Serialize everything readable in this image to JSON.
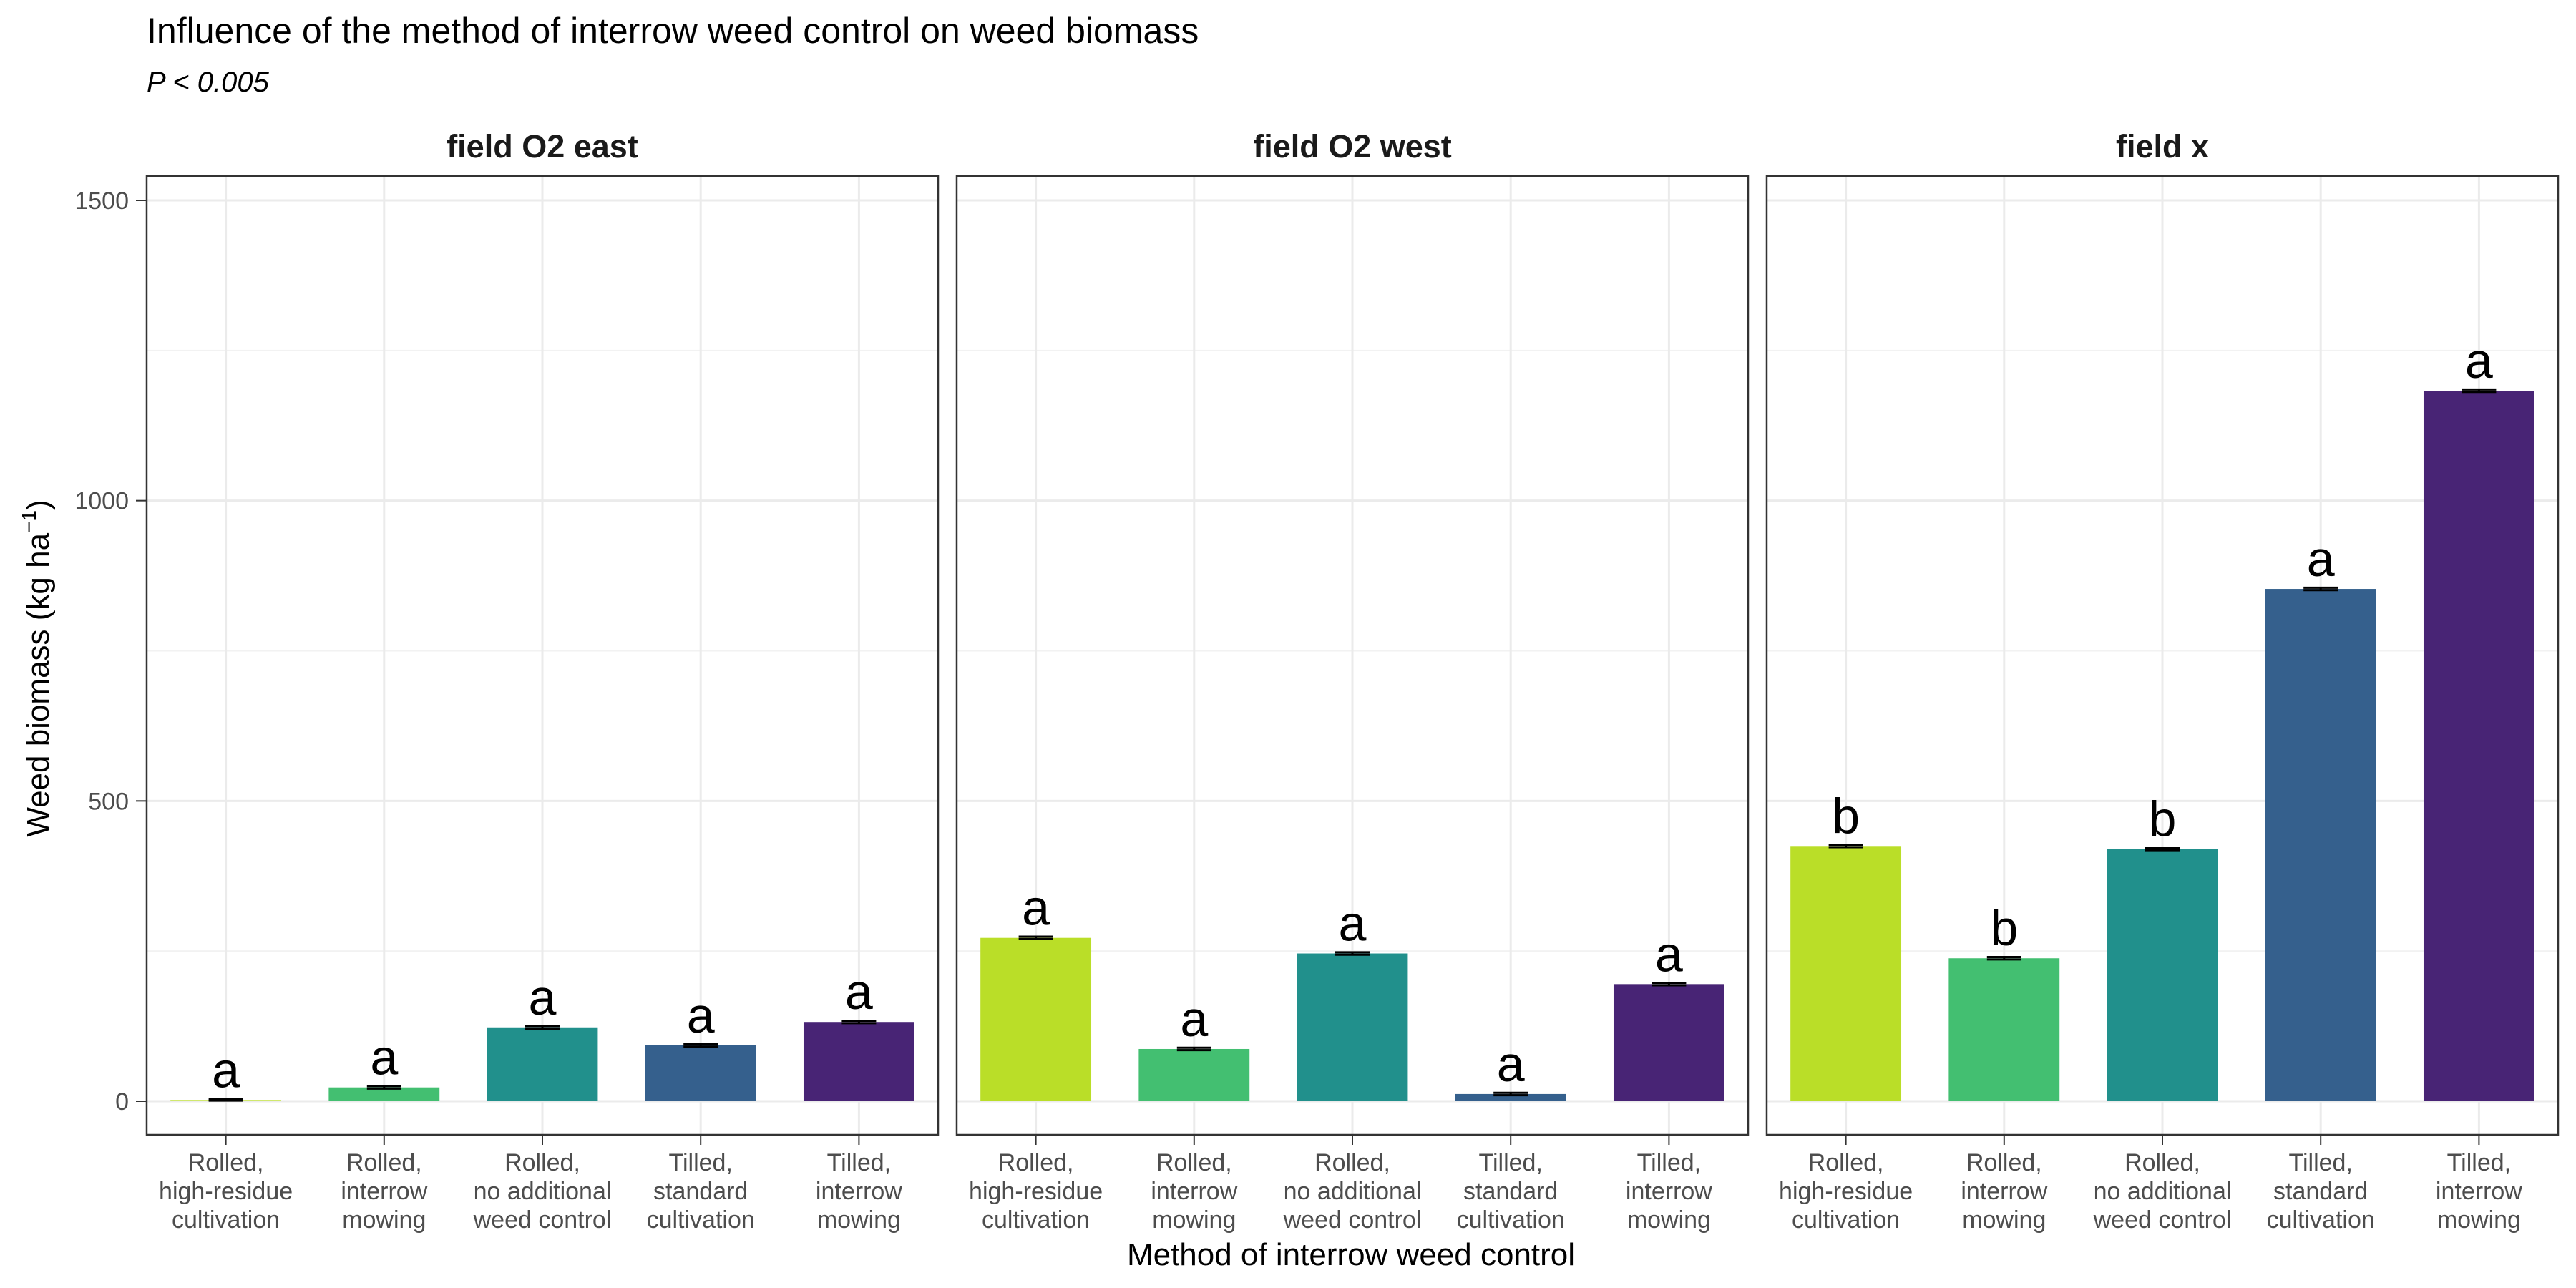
{
  "chart_data": {
    "type": "bar",
    "title": "Influence of the method of interrow weed control on weed biomass",
    "subtitle": "P < 0.005",
    "xlabel": "Method of interrow weed control",
    "ylabel": "Weed biomass (kg ha",
    "ylabel_sup": "−1",
    "ylabel_close": ")",
    "ylim": [
      0,
      1500
    ],
    "yticks": [
      0,
      500,
      1000,
      1500
    ],
    "grid": true,
    "categories": [
      [
        "Rolled,",
        "high-residue",
        "cultivation"
      ],
      [
        "Rolled,",
        "interrow",
        "mowing"
      ],
      [
        "Rolled,",
        "no additional",
        "weed control"
      ],
      [
        "Tilled,",
        "standard",
        "cultivation"
      ],
      [
        "Tilled,",
        "interrow",
        "mowing"
      ]
    ],
    "colors": [
      "#BADE28",
      "#43BF71",
      "#21908C",
      "#35608D",
      "#482475"
    ],
    "panels": [
      {
        "name": "field O2 east",
        "values": [
          2,
          23,
          123,
          93,
          132
        ],
        "errors": [
          1,
          2,
          2,
          2,
          2
        ],
        "letters": [
          "a",
          "a",
          "a",
          "a",
          "a"
        ]
      },
      {
        "name": "field O2 west",
        "values": [
          272,
          87,
          246,
          12,
          195
        ],
        "errors": [
          2,
          2,
          2,
          2,
          2
        ],
        "letters": [
          "a",
          "a",
          "a",
          "a",
          "a"
        ]
      },
      {
        "name": "field x",
        "values": [
          425,
          238,
          420,
          853,
          1183
        ],
        "errors": [
          2,
          2,
          2,
          2,
          2
        ],
        "letters": [
          "b",
          "b",
          "b",
          "a",
          "a"
        ]
      }
    ]
  }
}
